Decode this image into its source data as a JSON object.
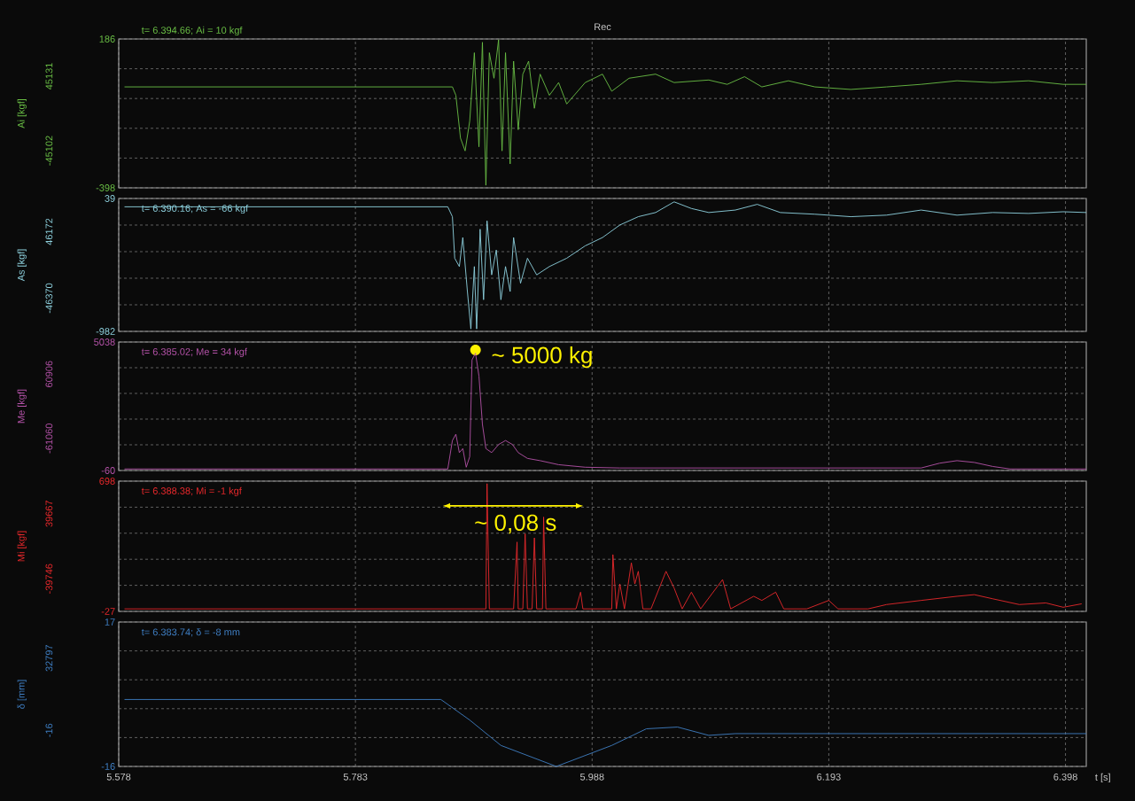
{
  "chart_data": [
    {
      "type": "line",
      "title": "Rec",
      "ylabel": "Ai [kgf]",
      "xlim": [
        5.578,
        6.416
      ],
      "xticks": [
        5.578,
        5.783,
        5.988,
        6.193,
        6.398
      ],
      "ylim": [
        -398,
        186
      ],
      "yticks": [
        -398,
        {
          "value": -281.2,
          "label": null
        },
        {
          "value": -164.4,
          "label": null
        },
        {
          "value": -47.6,
          "label": null
        },
        {
          "value": 69.2,
          "label": null
        },
        186
      ],
      "grid": true,
      "marker": "none",
      "tick_labels": "y",
      "annotations": [
        "t= 6.394.66; Ai = 10 kgf",
        "45131",
        "-45102"
      ],
      "series": [
        {
          "color": "#6abf45",
          "x": [
            5.583,
            5.867,
            5.87,
            5.874,
            5.878,
            5.882,
            5.886,
            5.89,
            5.893,
            5.896,
            5.899,
            5.903,
            5.907,
            5.91,
            5.913,
            5.917,
            5.92,
            5.924,
            5.928,
            5.933,
            5.938,
            5.943,
            5.951,
            5.959,
            5.966,
            5.982,
            5.997,
            6.005,
            6.02,
            6.043,
            6.059,
            6.089,
            6.105,
            6.12,
            6.135,
            6.158,
            6.181,
            6.212,
            6.243,
            6.273,
            6.304,
            6.335,
            6.366,
            6.396,
            6.416
          ],
          "values": [
            -2,
            -2,
            -35,
            -203,
            -253,
            -136,
            132,
            -237,
            173,
            -388,
            132,
            32,
            183,
            -253,
            132,
            -304,
            99,
            -170,
            48,
            99,
            -86,
            48,
            -35,
            15,
            -69,
            15,
            48,
            -19,
            32,
            48,
            15,
            25,
            8,
            38,
            -2,
            22,
            -2,
            -12,
            -2,
            8,
            22,
            15,
            22,
            8,
            8
          ]
        }
      ]
    },
    {
      "type": "line",
      "ylabel": "As [kgf]",
      "xlim": [
        5.578,
        6.416
      ],
      "xticks": [
        5.578,
        5.783,
        5.988,
        6.193,
        6.398
      ],
      "ylim": [
        -982,
        39
      ],
      "yticks": [
        -982,
        {
          "value": -777.8,
          "label": null
        },
        {
          "value": -573.6,
          "label": null
        },
        {
          "value": -369.4,
          "label": null
        },
        {
          "value": -165.2,
          "label": null
        },
        39
      ],
      "grid": true,
      "marker": "none",
      "tick_labels": "y",
      "annotations": [
        "t= 6.390.16; As = -66 kgf",
        "46172",
        "-46370"
      ],
      "series": [
        {
          "color": "#8fd3e0",
          "x": [
            5.583,
            5.863,
            5.867,
            5.869,
            5.873,
            5.876,
            5.88,
            5.883,
            5.886,
            5.888,
            5.891,
            5.894,
            5.897,
            5.901,
            5.905,
            5.909,
            5.913,
            5.917,
            5.92,
            5.926,
            5.932,
            5.94,
            5.951,
            5.966,
            5.982,
            5.997,
            6.012,
            6.028,
            6.043,
            6.059,
            6.074,
            6.089,
            6.112,
            6.131,
            6.151,
            6.181,
            6.212,
            6.243,
            6.273,
            6.304,
            6.335,
            6.366,
            6.396,
            6.416
          ],
          "values": [
            -25,
            -25,
            -101,
            -420,
            -484,
            -261,
            -676,
            -963,
            -484,
            -963,
            -197,
            -739,
            -133,
            -548,
            -357,
            -739,
            -484,
            -676,
            -261,
            -612,
            -420,
            -548,
            -484,
            -420,
            -325,
            -261,
            -165,
            -101,
            -69,
            13,
            -38,
            -69,
            -50,
            -6,
            -69,
            -82,
            -101,
            -89,
            -50,
            -89,
            -69,
            -76,
            -63,
            -69
          ]
        }
      ]
    },
    {
      "type": "line",
      "ylabel": "Me [kgf]",
      "xlim": [
        5.578,
        6.416
      ],
      "xticks": [
        5.578,
        5.783,
        5.988,
        6.193,
        6.398
      ],
      "ylim": [
        -60,
        5038
      ],
      "yticks": [
        -60,
        {
          "value": 959.6,
          "label": null
        },
        {
          "value": 1979.2,
          "label": null
        },
        {
          "value": 2998.8,
          "label": null
        },
        {
          "value": 4018.4,
          "label": null
        },
        5038
      ],
      "grid": true,
      "marker": "none",
      "tick_labels": "y",
      "annotations": [
        "t= 6.385.02; Me = 34 kgf",
        "60906",
        "-61060",
        {
          "text": "~ 5000 kg",
          "x": 5.887,
          "y": 4720
        }
      ],
      "series": [
        {
          "color": "#b452a8",
          "x": [
            5.583,
            5.863,
            5.867,
            5.87,
            5.873,
            5.876,
            5.879,
            5.882,
            5.884,
            5.887,
            5.89,
            5.893,
            5.896,
            5.901,
            5.907,
            5.913,
            5.919,
            5.924,
            5.932,
            5.943,
            5.959,
            5.982,
            6.012,
            6.089,
            6.273,
            6.289,
            6.304,
            6.319,
            6.335,
            6.35,
            6.416
          ],
          "values": [
            0,
            0,
            1130,
            1380,
            650,
            810,
            70,
            490,
            4330,
            4590,
            3690,
            1770,
            810,
            650,
            970,
            1130,
            970,
            650,
            420,
            330,
            170,
            70,
            40,
            40,
            40,
            230,
            330,
            260,
            100,
            0,
            0
          ]
        }
      ]
    },
    {
      "type": "line",
      "ylabel": "Mi [kgf]",
      "xlim": [
        5.578,
        6.416
      ],
      "xticks": [
        5.578,
        5.783,
        5.988,
        6.193,
        6.398
      ],
      "ylim": [
        -27,
        698
      ],
      "yticks": [
        -27,
        {
          "value": 118,
          "label": null
        },
        {
          "value": 263,
          "label": null
        },
        {
          "value": 408,
          "label": null
        },
        {
          "value": 553,
          "label": null
        },
        698
      ],
      "grid": true,
      "marker": "none",
      "tick_labels": "y",
      "annotations": [
        "t= 6.388.38; Mi = -1 kgf",
        "39667",
        "-39746",
        "~ 0,08 s"
      ],
      "series": [
        {
          "color": "#e8282b",
          "x": [
            5.583,
            5.89,
            5.896,
            5.897,
            5.899,
            5.92,
            5.923,
            5.924,
            5.928,
            5.93,
            5.932,
            5.936,
            5.938,
            5.94,
            5.945,
            5.946,
            5.948,
            5.974,
            5.978,
            5.98,
            6.005,
            6.006,
            6.009,
            6.012,
            6.016,
            6.022,
            6.025,
            6.028,
            6.032,
            6.039,
            6.052,
            6.059,
            6.066,
            6.074,
            6.082,
            6.101,
            6.108,
            6.128,
            6.135,
            6.147,
            6.154,
            6.174,
            6.193,
            6.201,
            6.227,
            6.243,
            6.273,
            6.304,
            6.319,
            6.335,
            6.358,
            6.381,
            6.396,
            6.412
          ],
          "values": [
            -13,
            -13,
            -13,
            684,
            -13,
            -13,
            359,
            -13,
            -13,
            405,
            -13,
            -13,
            382,
            -13,
            -13,
            498,
            -13,
            -13,
            80,
            -13,
            -13,
            289,
            -13,
            126,
            -13,
            243,
            126,
            196,
            -13,
            -13,
            196,
            103,
            -13,
            80,
            -13,
            150,
            -13,
            57,
            34,
            80,
            -13,
            -13,
            34,
            -13,
            -13,
            11,
            34,
            57,
            66,
            43,
            11,
            20,
            -4,
            15
          ]
        }
      ]
    },
    {
      "type": "line",
      "ylabel": "δ [mm]",
      "xlabel": "t [s]",
      "xlim": [
        5.578,
        6.416
      ],
      "xticks": [
        5.578,
        5.783,
        5.988,
        6.193,
        6.398
      ],
      "ylim": [
        -16,
        17
      ],
      "yticks": [
        -16,
        {
          "value": -9.4,
          "label": null
        },
        {
          "value": -2.8,
          "label": null
        },
        {
          "value": 3.8,
          "label": null
        },
        {
          "value": 10.4,
          "label": null
        },
        17
      ],
      "grid": true,
      "marker": "none",
      "annotations": [
        "t= 6.383.74;    δ = -8 mm",
        "32797",
        "-16"
      ],
      "series": [
        {
          "color": "#3f7fc4",
          "x": [
            5.583,
            5.857,
            5.882,
            5.909,
            5.957,
            6.005,
            6.035,
            6.062,
            6.089,
            6.112,
            6.416
          ],
          "values": [
            -0.7,
            -0.7,
            -5.4,
            -11.2,
            -16,
            -11.2,
            -7.4,
            -7.0,
            -8.9,
            -8.5,
            -8.5
          ]
        }
      ]
    }
  ]
}
